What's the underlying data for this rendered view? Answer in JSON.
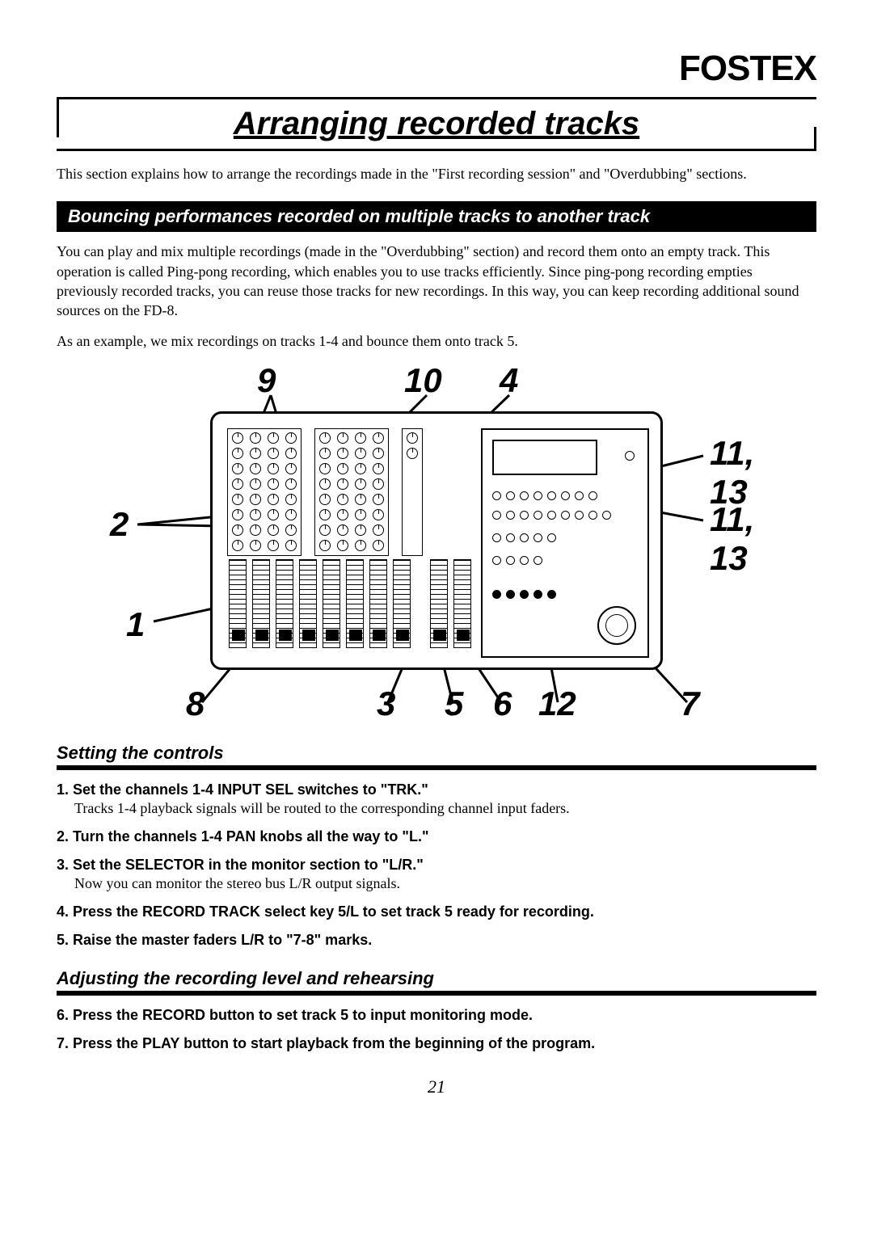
{
  "brand": "FOSTEX",
  "title": "Arranging recorded tracks",
  "intro": "This section explains how to arrange the recordings made in the \"First recording session\" and \"Overdubbing\" sections.",
  "blackbar": "Bouncing performances recorded on multiple tracks to another track",
  "para1": "You can play and mix multiple recordings (made in the \"Overdubbing\" section) and record them onto an empty track. This operation is called Ping-pong recording, which enables you to use tracks efficiently. Since ping-pong recording empties previously recorded tracks, you can reuse those tracks for new recordings. In this way, you can keep recording additional sound sources on the FD-8.",
  "para2": "As an example, we mix recordings on tracks 1-4 and bounce them onto track 5.",
  "callouts": {
    "c9": "9",
    "c10": "10",
    "c4": "4",
    "c11_13a": "11, 13",
    "c11_13b": "11, 13",
    "c2": "2",
    "c1": "1",
    "c8": "8",
    "c3": "3",
    "c5": "5",
    "c6": "6",
    "c12": "12",
    "c7": "7"
  },
  "subhead1": "Setting the controls",
  "steps1": [
    {
      "head": "1. Set the channels 1-4 INPUT SEL switches to \"TRK.\"",
      "desc": "Tracks 1-4 playback signals will be routed to the corresponding channel input faders."
    },
    {
      "head": "2. Turn the channels 1-4 PAN knobs all the way to \"L.\"",
      "desc": ""
    },
    {
      "head": "3. Set the SELECTOR in the monitor section to \"L/R.\"",
      "desc": "Now you can monitor the stereo bus L/R output signals."
    },
    {
      "head": "4. Press the RECORD TRACK select key 5/L to set track 5 ready for recording.",
      "desc": ""
    },
    {
      "head": "5. Raise the master faders L/R to \"7-8\" marks.",
      "desc": ""
    }
  ],
  "subhead2": "Adjusting the recording level and rehearsing",
  "steps2": [
    {
      "head": "6. Press the RECORD button to set track 5 to input monitoring mode.",
      "desc": ""
    },
    {
      "head": "7. Press the PLAY button to start playback from the beginning of the program.",
      "desc": ""
    }
  ],
  "pagenum": "21"
}
